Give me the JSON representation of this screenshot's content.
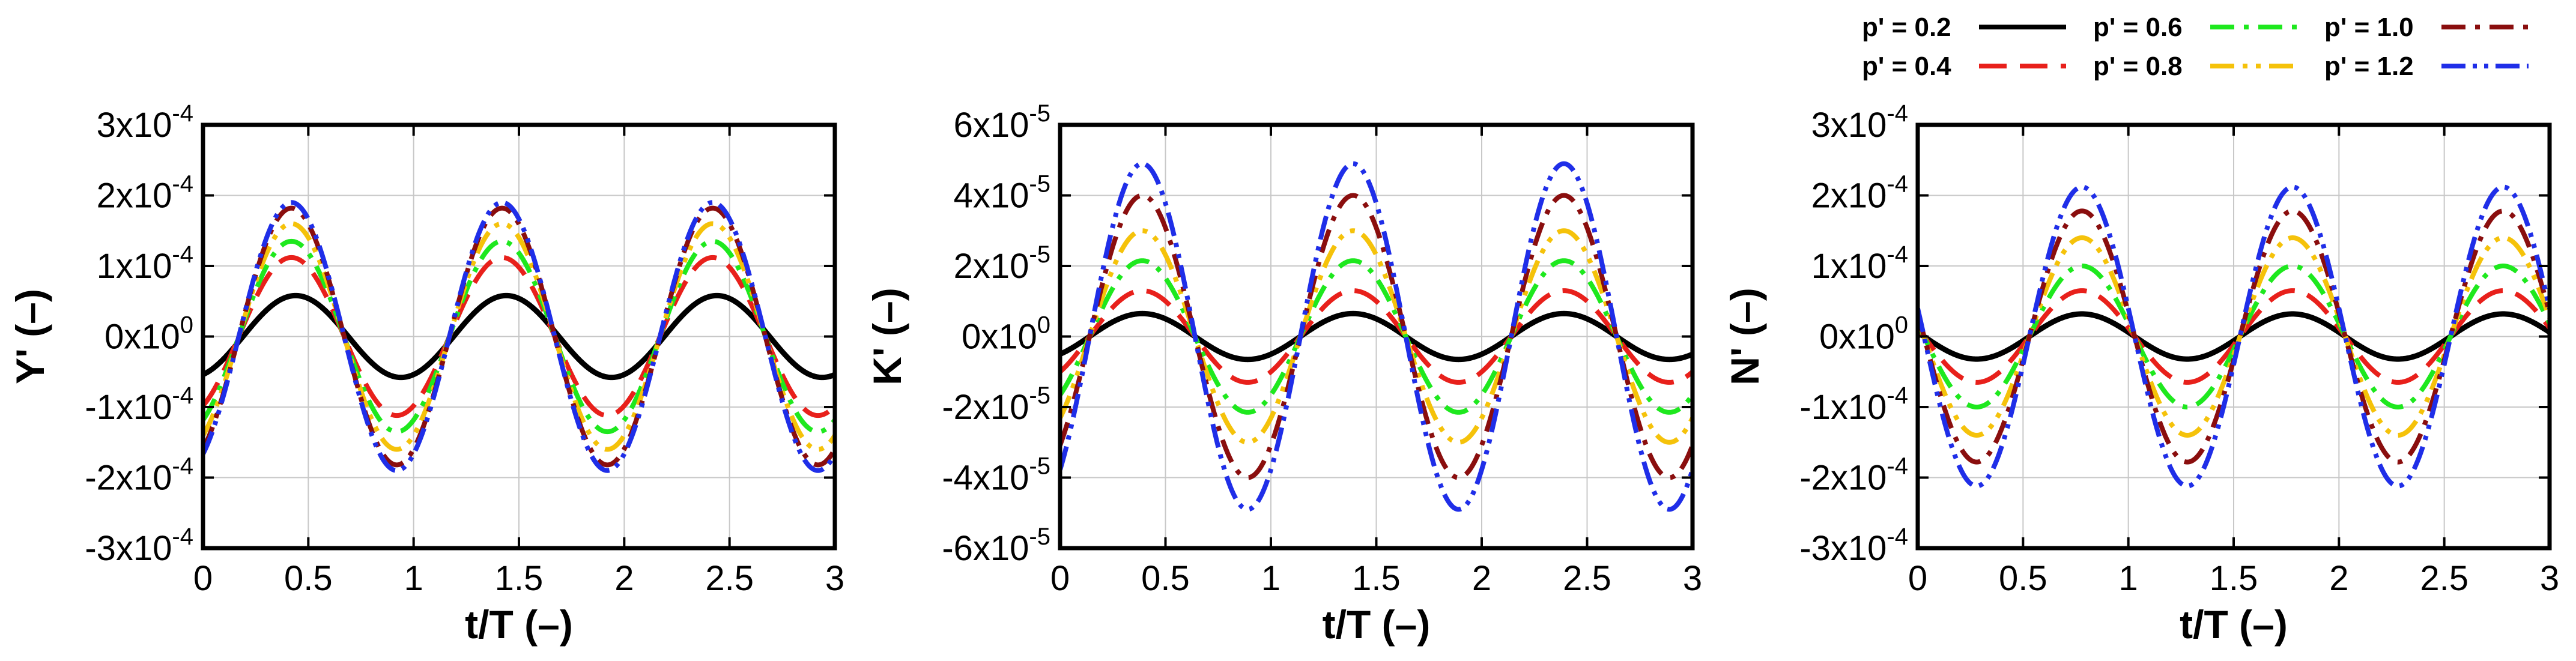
{
  "colors": {
    "p02": "#000000",
    "p04": "#e8201b",
    "p06": "#1ee81e",
    "p08": "#f5c20a",
    "p10": "#8a0e0e",
    "p12": "#1f2ee8"
  },
  "legend": [
    {
      "label": "p' = 0.2",
      "series": 0
    },
    {
      "label": "p' = 0.6",
      "series": 2
    },
    {
      "label": "p' = 1.0",
      "series": 4
    },
    {
      "label": "p' = 0.4",
      "series": 1
    },
    {
      "label": "p' = 0.8",
      "series": 3
    },
    {
      "label": "p' = 1.2",
      "series": 5
    }
  ],
  "legend_placement": "top-right",
  "chart_data": [
    {
      "type": "line",
      "id": "Y",
      "xlabel": "t/T (–)",
      "ylabel": "Y' (–)",
      "xlim": [
        0,
        3
      ],
      "ylim": [
        -0.0003,
        0.0003
      ],
      "grid": true,
      "xticks": [
        {
          "v": 0,
          "t": "0"
        },
        {
          "v": 0.5,
          "t": "0.5"
        },
        {
          "v": 1,
          "t": "1"
        },
        {
          "v": 1.5,
          "t": "1.5"
        },
        {
          "v": 2,
          "t": "2"
        },
        {
          "v": 2.5,
          "t": "2.5"
        },
        {
          "v": 3,
          "t": "3"
        }
      ],
      "yticks": [
        {
          "v": 0.0003,
          "m": "3x10",
          "e": "-4"
        },
        {
          "v": 0.0002,
          "m": "2x10",
          "e": "-4"
        },
        {
          "v": 0.0001,
          "m": "1x10",
          "e": "-4"
        },
        {
          "v": 0,
          "m": "0x10",
          "e": "0"
        },
        {
          "v": -0.0001,
          "m": "-1x10",
          "e": "-4"
        },
        {
          "v": -0.0002,
          "m": "-2x10",
          "e": "-4"
        },
        {
          "v": -0.0003,
          "m": "-3x10",
          "e": "-4"
        }
      ],
      "period": 1,
      "peak_t": 0.42,
      "series": [
        {
          "name": "p' = 0.2",
          "amplitude": 5.8e-05,
          "peak_t": 0.44
        },
        {
          "name": "p' = 0.4",
          "amplitude": 0.000112
        },
        {
          "name": "p' = 0.6",
          "amplitude": 0.000135
        },
        {
          "name": "p' = 0.8",
          "amplitude": 0.00016
        },
        {
          "name": "p' = 1.0",
          "amplitude": 0.000182
        },
        {
          "name": "p' = 1.2",
          "amplitude": 0.00019
        }
      ]
    },
    {
      "type": "line",
      "id": "K",
      "xlabel": "t/T (–)",
      "ylabel": "K' (–)",
      "xlim": [
        0,
        3
      ],
      "ylim": [
        -6e-05,
        6e-05
      ],
      "grid": true,
      "xticks": [
        {
          "v": 0,
          "t": "0"
        },
        {
          "v": 0.5,
          "t": "0.5"
        },
        {
          "v": 1,
          "t": "1"
        },
        {
          "v": 1.5,
          "t": "1.5"
        },
        {
          "v": 2,
          "t": "2"
        },
        {
          "v": 2.5,
          "t": "2.5"
        },
        {
          "v": 3,
          "t": "3"
        }
      ],
      "yticks": [
        {
          "v": 6e-05,
          "m": "6x10",
          "e": "-5"
        },
        {
          "v": 4e-05,
          "m": "4x10",
          "e": "-5"
        },
        {
          "v": 2e-05,
          "m": "2x10",
          "e": "-5"
        },
        {
          "v": 0,
          "m": "0x10",
          "e": "0"
        },
        {
          "v": -2e-05,
          "m": "-2x10",
          "e": "-5"
        },
        {
          "v": -4e-05,
          "m": "-4x10",
          "e": "-5"
        },
        {
          "v": -6e-05,
          "m": "-6x10",
          "e": "-5"
        }
      ],
      "period": 1,
      "peak_t": 0.39,
      "series": [
        {
          "name": "p' = 0.2",
          "amplitude": 6.5e-06
        },
        {
          "name": "p' = 0.4",
          "amplitude": 1.3e-05
        },
        {
          "name": "p' = 0.6",
          "amplitude": 2.15e-05
        },
        {
          "name": "p' = 0.8",
          "amplitude": 3e-05
        },
        {
          "name": "p' = 1.0",
          "amplitude": 4e-05
        },
        {
          "name": "p' = 1.2",
          "amplitude": 4.9e-05
        }
      ]
    },
    {
      "type": "line",
      "id": "N",
      "xlabel": "t/T (–)",
      "ylabel": "N' (–)",
      "xlim": [
        0,
        3
      ],
      "ylim": [
        -0.0003,
        0.0003
      ],
      "grid": true,
      "xticks": [
        {
          "v": 0,
          "t": "0"
        },
        {
          "v": 0.5,
          "t": "0.5"
        },
        {
          "v": 1,
          "t": "1"
        },
        {
          "v": 1.5,
          "t": "1.5"
        },
        {
          "v": 2,
          "t": "2"
        },
        {
          "v": 2.5,
          "t": "2.5"
        },
        {
          "v": 3,
          "t": "3"
        }
      ],
      "yticks": [
        {
          "v": 0.0003,
          "m": "3x10",
          "e": "-4"
        },
        {
          "v": 0.0002,
          "m": "2x10",
          "e": "-4"
        },
        {
          "v": 0.0001,
          "m": "1x10",
          "e": "-4"
        },
        {
          "v": 0,
          "m": "0x10",
          "e": "0"
        },
        {
          "v": -0.0001,
          "m": "-1x10",
          "e": "-4"
        },
        {
          "v": -0.0002,
          "m": "-2x10",
          "e": "-4"
        },
        {
          "v": -0.0003,
          "m": "-3x10",
          "e": "-4"
        }
      ],
      "period": 1,
      "peak_t": 0.78,
      "series": [
        {
          "name": "p' = 0.2",
          "amplitude": 3.2e-05
        },
        {
          "name": "p' = 0.4",
          "amplitude": 6.5e-05
        },
        {
          "name": "p' = 0.6",
          "amplitude": 0.0001
        },
        {
          "name": "p' = 0.8",
          "amplitude": 0.00014
        },
        {
          "name": "p' = 1.0",
          "amplitude": 0.000178
        },
        {
          "name": "p' = 1.2",
          "amplitude": 0.000212
        }
      ]
    }
  ]
}
